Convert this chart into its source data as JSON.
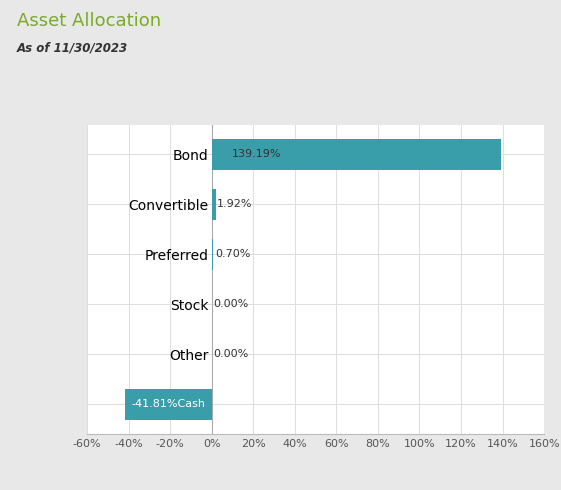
{
  "title": "Asset Allocation",
  "subtitle": "As of 11/30/2023",
  "categories": [
    "Cash",
    "Other",
    "Stock",
    "Preferred",
    "Convertible",
    "Bond"
  ],
  "values": [
    -41.81,
    0.0,
    0.0,
    0.7,
    1.92,
    139.19
  ],
  "labels": [
    "-41.81%",
    "0.00%",
    "0.00%",
    "0.70%",
    "1.92%",
    "139.19%"
  ],
  "bar_color": "#3a9eaa",
  "title_color": "#7aaa2a",
  "subtitle_color": "#333333",
  "plot_bg_color": "#ffffff",
  "grid_color": "#dddddd",
  "xlim": [
    -60,
    160
  ],
  "xticks": [
    -60,
    -40,
    -20,
    0,
    20,
    40,
    60,
    80,
    100,
    120,
    140,
    160
  ],
  "figure_bg": "#e8e8e8",
  "card_bg": "#f5f5f5"
}
